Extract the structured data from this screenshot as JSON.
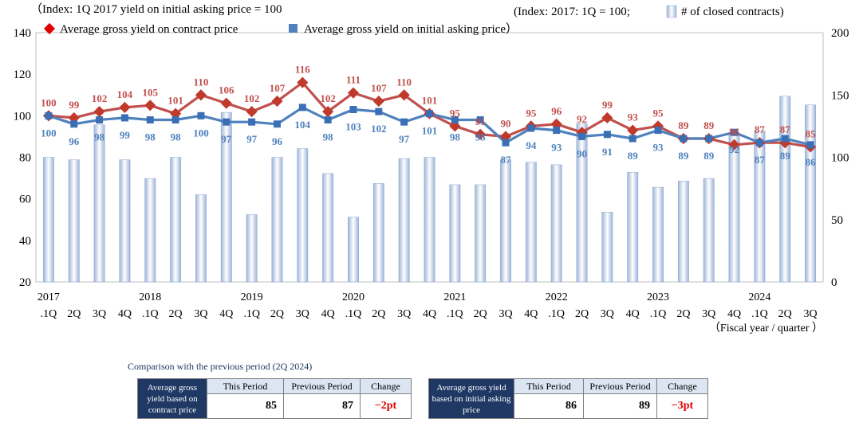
{
  "chart_data": {
    "type": "bar+line",
    "left_axis_note": "（Index: 1Q 2017 yield on initial asking price = 100",
    "right_axis_note": "(Index: 2017: 1Q = 100;",
    "bar_legend": "# of closed contracts)",
    "legend": [
      "Average gross yield on contract price",
      "Average gross yield on initial asking price）"
    ],
    "x_axis_title": "（Fiscal year / quarter ）",
    "year_labels": [
      {
        "index": 0,
        "label": "2017"
      },
      {
        "index": 4,
        "label": "2018"
      },
      {
        "index": 8,
        "label": "2019"
      },
      {
        "index": 12,
        "label": "2020"
      },
      {
        "index": 16,
        "label": "2021"
      },
      {
        "index": 20,
        "label": "2022"
      },
      {
        "index": 24,
        "label": "2023"
      },
      {
        "index": 28,
        "label": "2024"
      }
    ],
    "categories": [
      ".1Q",
      "2Q",
      "3Q",
      "4Q",
      ".1Q",
      "2Q",
      "3Q",
      "4Q",
      ".1Q",
      "2Q",
      "3Q",
      "4Q",
      ".1Q",
      "2Q",
      "3Q",
      "4Q",
      ".1Q",
      "2Q",
      "3Q",
      "4Q",
      ".1Q",
      "2Q",
      "3Q",
      "4Q",
      ".1Q",
      "2Q",
      "3Q",
      "4Q",
      ".1Q",
      "2Q",
      "3Q"
    ],
    "left_axis": {
      "min": 20,
      "max": 140,
      "ticks": [
        20,
        40,
        60,
        80,
        100,
        120,
        140
      ]
    },
    "right_axis": {
      "min": 0,
      "max": 200,
      "ticks": [
        0,
        50,
        100,
        150,
        200
      ]
    },
    "bars": {
      "name": "# of closed contracts",
      "values": [
        100,
        98,
        126,
        98,
        83,
        100,
        70,
        136,
        54,
        100,
        107,
        87,
        52,
        79,
        99,
        100,
        78,
        78,
        98,
        96,
        94,
        127,
        56,
        88,
        76,
        81,
        83,
        118,
        121,
        149,
        142
      ]
    },
    "series": [
      {
        "name": "Average gross yield on contract price",
        "color": "#c0504d",
        "marker_color": "#c0392b",
        "values": [
          100,
          99,
          102,
          104,
          105,
          101,
          110,
          106,
          102,
          107,
          116,
          102,
          111,
          107,
          110,
          101,
          95,
          91,
          90,
          95,
          96,
          92,
          99,
          93,
          95,
          89,
          89,
          86,
          87,
          87,
          85
        ]
      },
      {
        "name": "Average gross yield on initial asking price",
        "color": "#4f81bd",
        "marker_color": "#3a6fb5",
        "values": [
          100,
          96,
          98,
          99,
          98,
          98,
          100,
          97,
          97,
          96,
          104,
          98,
          103,
          102,
          97,
          101,
          98,
          98,
          87,
          94,
          93,
          90,
          91,
          89,
          93,
          89,
          89,
          92,
          87,
          89,
          86
        ]
      }
    ]
  },
  "comparison": {
    "caption": "Comparison with the previous period (2Q 2024)",
    "col_this": "This Period",
    "col_prev": "Previous Period",
    "col_change": "Change",
    "contract": {
      "label": "Average gross yield based on contract price",
      "this": "85",
      "prev": "87",
      "change": "−2pt"
    },
    "asking": {
      "label": "Average gross yield based on initial asking price",
      "this": "86",
      "prev": "89",
      "change": "−3pt"
    }
  }
}
